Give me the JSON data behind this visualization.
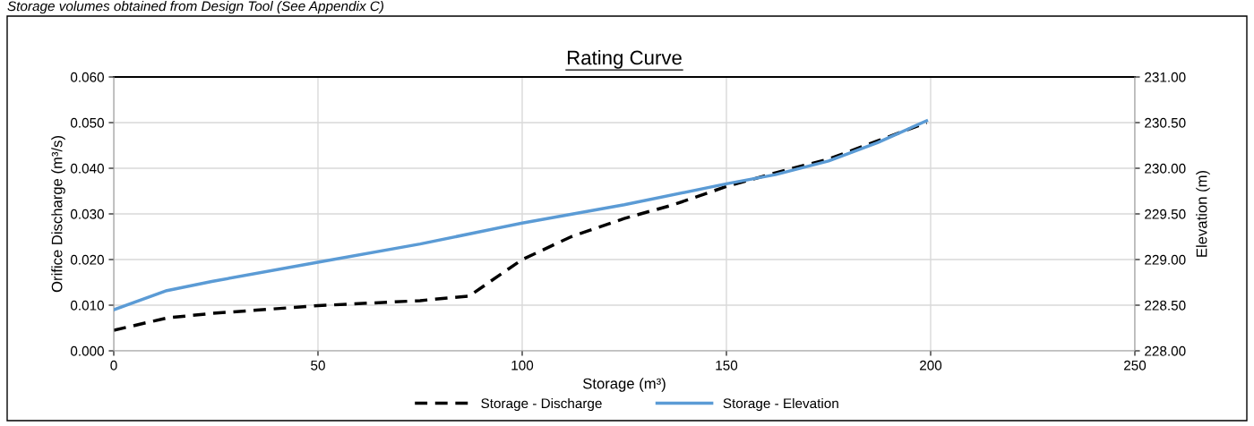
{
  "chart_data": {
    "type": "line",
    "title": "Rating Curve",
    "xlabel": "Storage (m³)",
    "ylabel": "Orifice Discharge (m³/s)",
    "y2label": "Elevation (m)",
    "annotations": [
      "Storage volumes obtained from Design Tool (See Appendix C)"
    ],
    "series": [
      {
        "name": "Storage - Discharge",
        "color": "#000000",
        "line_style": "dashed",
        "x": [
          0,
          13,
          24,
          50,
          75,
          87,
          100,
          112,
          125,
          137,
          150,
          162,
          175,
          187,
          199
        ],
        "values": [
          0.0045,
          0.0072,
          0.0082,
          0.0099,
          0.011,
          0.012,
          0.02,
          0.025,
          0.029,
          0.032,
          0.036,
          0.039,
          0.042,
          0.046,
          0.05
        ]
      },
      {
        "name": "Storage - Elevation",
        "color": "#5b9bd5",
        "line_style": "solid",
        "axis": "y2",
        "x": [
          0,
          13,
          24,
          50,
          75,
          100,
          125,
          150,
          162,
          175,
          187,
          199
        ],
        "values": [
          228.45,
          228.66,
          228.76,
          228.97,
          229.17,
          229.4,
          229.6,
          229.83,
          229.93,
          230.08,
          230.28,
          230.52
        ]
      }
    ],
    "xlim": [
      0,
      250
    ],
    "xticks": [
      0,
      50,
      100,
      150,
      200,
      250
    ],
    "ylim": [
      0,
      0.06
    ],
    "yticks": [
      {
        "value": 0,
        "label": "0.000"
      },
      {
        "value": 0.01,
        "label": "0.010"
      },
      {
        "value": 0.02,
        "label": "0.020"
      },
      {
        "value": 0.03,
        "label": "0.030"
      },
      {
        "value": 0.04,
        "label": "0.040"
      },
      {
        "value": 0.05,
        "label": "0.050"
      },
      {
        "value": 0.06,
        "label": "0.060"
      }
    ],
    "y2lim": [
      228,
      231
    ],
    "y2ticks": [
      {
        "value": 228,
        "label": "228.00"
      },
      {
        "value": 228.5,
        "label": "228.50"
      },
      {
        "value": 229,
        "label": "229.00"
      },
      {
        "value": 229.5,
        "label": "229.50"
      },
      {
        "value": 230,
        "label": "230.00"
      },
      {
        "value": 230.5,
        "label": "230.50"
      },
      {
        "value": 231,
        "label": "231.00"
      }
    ],
    "grid": true,
    "legend": "bottom",
    "marker": "none"
  }
}
